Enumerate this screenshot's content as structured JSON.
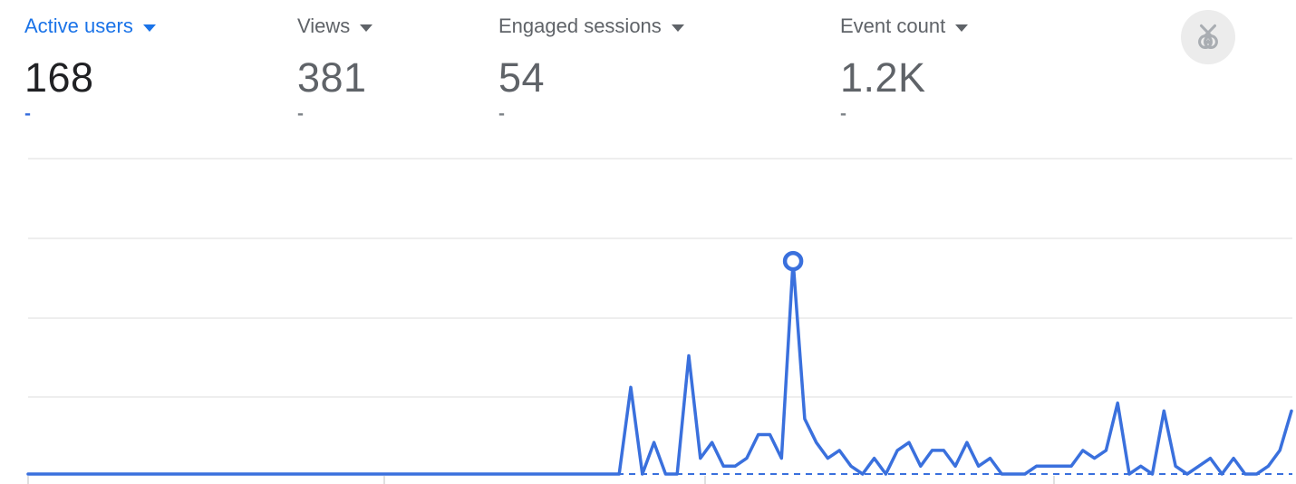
{
  "metrics": [
    {
      "label": "Active users",
      "value": "168",
      "delta": "-",
      "selected": true
    },
    {
      "label": "Views",
      "value": "381",
      "delta": "-",
      "selected": false
    },
    {
      "label": "Engaged sessions",
      "value": "54",
      "delta": "-",
      "selected": false
    },
    {
      "label": "Event count",
      "value": "1.2K",
      "delta": "-",
      "selected": false
    }
  ],
  "icons": {
    "benchmark_medal": "benchmarking-medal-icon",
    "metric_dropdown": "chevron-down-icon"
  },
  "colors": {
    "accent_blue": "#1a73e8",
    "chart_blue": "#3a70dd",
    "gray_text": "#5f6368",
    "dark_text": "#202124",
    "delta_gray": "#80868b",
    "grid_gray": "#e9e9e9",
    "tick_gray": "#e0e0e0",
    "icon_bg": "#ececec",
    "icon_fg": "#a9adb2"
  },
  "chart_data": {
    "type": "line",
    "title": "",
    "xlabel": "",
    "ylabel": "",
    "ylim": [
      0,
      40
    ],
    "grid": "horizontal",
    "legend": "none",
    "x_axis_labels": [],
    "baseline_style": "dashed",
    "highlight_index": 66,
    "series": [
      {
        "name": "Active users",
        "values": [
          0,
          0,
          0,
          0,
          0,
          0,
          0,
          0,
          0,
          0,
          0,
          0,
          0,
          0,
          0,
          0,
          0,
          0,
          0,
          0,
          0,
          0,
          0,
          0,
          0,
          0,
          0,
          0,
          0,
          0,
          0,
          0,
          0,
          0,
          0,
          0,
          0,
          0,
          0,
          0,
          0,
          0,
          0,
          0,
          0,
          0,
          0,
          0,
          0,
          0,
          0,
          0,
          11,
          0,
          4,
          0,
          0,
          15,
          2,
          4,
          1,
          1,
          2,
          5,
          5,
          2,
          27,
          7,
          4,
          2,
          3,
          1,
          0,
          2,
          0,
          3,
          4,
          1,
          3,
          3,
          1,
          4,
          1,
          2,
          0,
          0,
          0,
          1,
          1,
          1,
          1,
          3,
          2,
          3,
          9,
          0,
          1,
          0,
          8,
          1,
          0,
          1,
          2,
          0,
          2,
          0,
          0,
          1,
          3,
          8
        ]
      }
    ]
  }
}
